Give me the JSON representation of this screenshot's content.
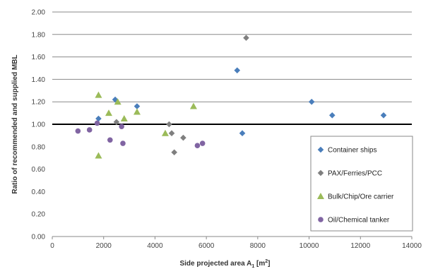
{
  "chart_data": {
    "type": "scatter",
    "xlabel": "Side projected area A",
    "xlabel_sub": "1",
    "xlabel_unit": " [m",
    "xlabel_sup": "2",
    "xlabel_close": "]",
    "ylabel": "Ratio of recommended and supplied MBL",
    "xlim": [
      0,
      14000
    ],
    "ylim": [
      0,
      2.0
    ],
    "x_ticks": [
      0,
      2000,
      4000,
      6000,
      8000,
      10000,
      12000,
      14000
    ],
    "x_tick_labels": [
      "0",
      "2000",
      "4000",
      "6000",
      "8000",
      "10000",
      "12000",
      "14000"
    ],
    "y_ticks": [
      0,
      0.2,
      0.4,
      0.6,
      0.8,
      1.0,
      1.2,
      1.4,
      1.6,
      1.8,
      2.0
    ],
    "y_tick_labels": [
      "0.00",
      "0.20",
      "0.40",
      "0.60",
      "0.80",
      "1.00",
      "1.20",
      "1.40",
      "1.60",
      "1.80",
      "2.00"
    ],
    "gridlines_y": [
      1.2,
      1.4,
      1.6,
      1.8,
      2.0
    ],
    "reference_line_y": 1.0,
    "legend_position": "bottom-right",
    "series": [
      {
        "name": "Container ships",
        "marker": "diamond",
        "color": "#4a7ebb",
        "points": [
          [
            1800,
            1.05
          ],
          [
            2450,
            1.22
          ],
          [
            3300,
            1.16
          ],
          [
            7200,
            1.48
          ],
          [
            7400,
            0.92
          ],
          [
            10100,
            1.2
          ],
          [
            10900,
            1.08
          ],
          [
            12900,
            1.08
          ]
        ]
      },
      {
        "name": "PAX/Ferries/PCC",
        "marker": "diamond",
        "color": "#7f7f7f",
        "points": [
          [
            2500,
            1.02
          ],
          [
            4550,
            1.0
          ],
          [
            4650,
            0.92
          ],
          [
            4750,
            0.75
          ],
          [
            5100,
            0.88
          ],
          [
            7550,
            1.77
          ]
        ]
      },
      {
        "name": "Bulk/Chip/Ore carrier",
        "marker": "triangle",
        "color": "#9bbb59",
        "points": [
          [
            1800,
            1.26
          ],
          [
            1800,
            0.72
          ],
          [
            2200,
            1.1
          ],
          [
            2550,
            1.2
          ],
          [
            2800,
            1.05
          ],
          [
            3300,
            1.11
          ],
          [
            4400,
            0.92
          ],
          [
            5500,
            1.16
          ]
        ]
      },
      {
        "name": "Oil/Chemical tanker",
        "marker": "circle",
        "color": "#8064a2",
        "points": [
          [
            1000,
            0.94
          ],
          [
            1450,
            0.95
          ],
          [
            1750,
            1.01
          ],
          [
            2250,
            0.86
          ],
          [
            2700,
            0.98
          ],
          [
            2750,
            0.83
          ],
          [
            5650,
            0.81
          ],
          [
            5850,
            0.83
          ]
        ]
      }
    ]
  }
}
